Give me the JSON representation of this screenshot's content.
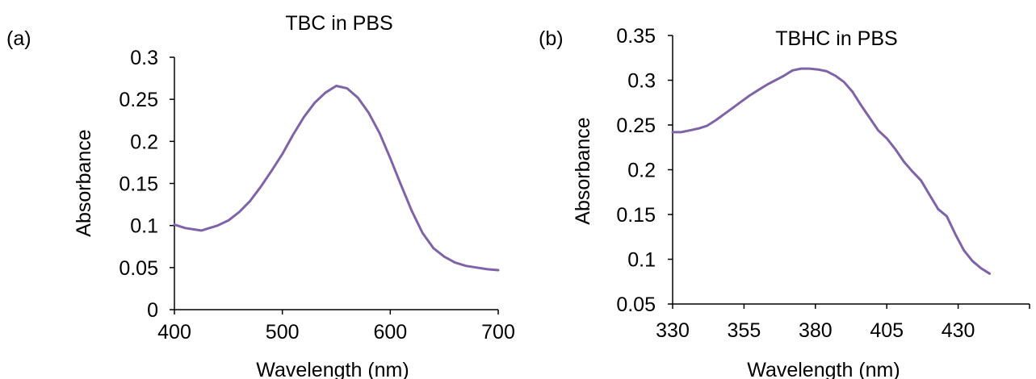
{
  "colors": {
    "series": "#7f63a8",
    "axis": "#000000"
  },
  "chart_data": [
    {
      "panel_label": "(a)",
      "type": "line",
      "title": "TBC in PBS",
      "xlabel": "Wavelength (nm)",
      "ylabel": "Absorbance",
      "xlim": [
        400,
        700
      ],
      "ylim": [
        0,
        0.3
      ],
      "xticks": [
        400,
        500,
        600,
        700
      ],
      "xtick_labels": [
        "400",
        "500",
        "600",
        "700"
      ],
      "yticks": [
        0,
        0.05,
        0.1,
        0.15,
        0.2,
        0.25,
        0.3
      ],
      "ytick_labels": [
        "0",
        "0.05",
        "0.1",
        "0.15",
        "0.2",
        "0.25",
        "0.3"
      ],
      "grid": false,
      "series": [
        {
          "x": [
            400,
            410,
            420,
            425,
            430,
            440,
            450,
            460,
            470,
            480,
            490,
            500,
            510,
            520,
            530,
            540,
            550,
            560,
            570,
            580,
            590,
            600,
            610,
            620,
            630,
            640,
            650,
            660,
            670,
            680,
            690,
            700
          ],
          "values": [
            0.101,
            0.097,
            0.095,
            0.094,
            0.096,
            0.1,
            0.106,
            0.116,
            0.129,
            0.146,
            0.165,
            0.185,
            0.208,
            0.229,
            0.246,
            0.258,
            0.266,
            0.263,
            0.252,
            0.234,
            0.21,
            0.18,
            0.148,
            0.117,
            0.091,
            0.073,
            0.063,
            0.056,
            0.052,
            0.05,
            0.048,
            0.047
          ]
        }
      ]
    },
    {
      "panel_label": "(b)",
      "type": "line",
      "title": "TBHC in PBS",
      "xlabel": "Wavelength (nm)",
      "ylabel": "Absorbance",
      "xlim": [
        330,
        455
      ],
      "ylim": [
        0.05,
        0.35
      ],
      "xticks": [
        330,
        355,
        380,
        405,
        430,
        455
      ],
      "xtick_labels": [
        "330",
        "355",
        "380",
        "405",
        "430",
        ""
      ],
      "yticks": [
        0.05,
        0.1,
        0.15,
        0.2,
        0.25,
        0.3,
        0.35
      ],
      "ytick_labels": [
        "0.05",
        "0.1",
        "0.15",
        "0.2",
        "0.25",
        "0.3",
        "0.35"
      ],
      "grid": false,
      "series": [
        {
          "x": [
            330,
            333,
            336,
            339,
            342,
            345,
            348,
            351,
            354,
            357,
            360,
            363,
            366,
            369,
            372,
            375,
            378,
            381,
            384,
            387,
            390,
            393,
            396,
            399,
            402,
            405,
            408,
            411,
            414,
            417,
            420,
            423,
            426,
            429,
            432,
            435,
            438,
            441
          ],
          "values": [
            0.242,
            0.242,
            0.244,
            0.246,
            0.249,
            0.255,
            0.262,
            0.269,
            0.276,
            0.283,
            0.289,
            0.295,
            0.3,
            0.305,
            0.311,
            0.313,
            0.313,
            0.312,
            0.31,
            0.305,
            0.298,
            0.287,
            0.272,
            0.258,
            0.244,
            0.235,
            0.223,
            0.209,
            0.198,
            0.188,
            0.172,
            0.156,
            0.148,
            0.128,
            0.11,
            0.098,
            0.09,
            0.084
          ]
        }
      ]
    }
  ]
}
